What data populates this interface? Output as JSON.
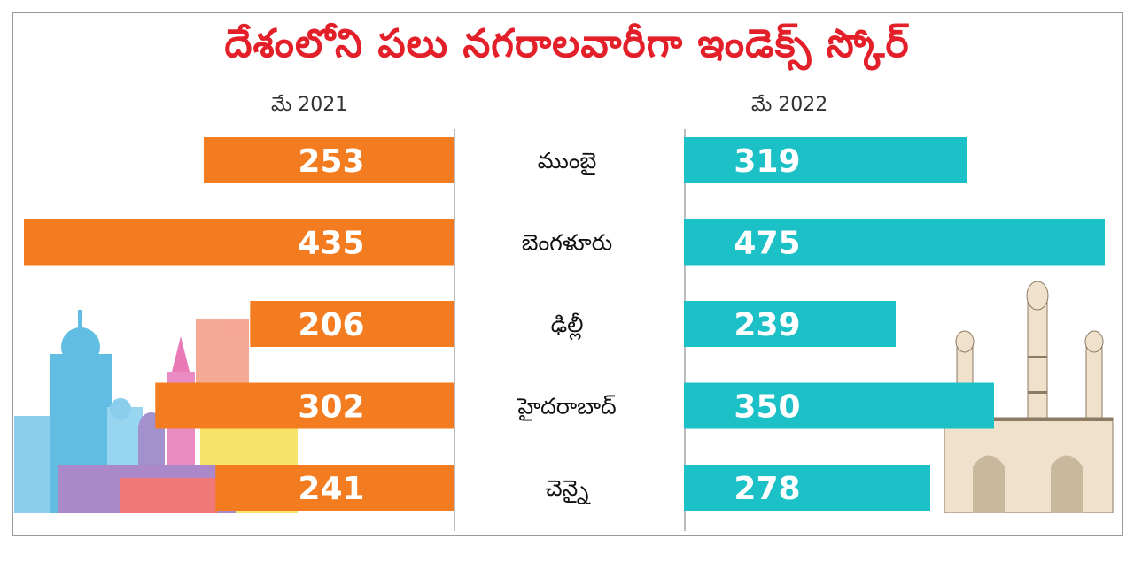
{
  "title": "దేశంలోని పలు నగరాలవారీగా ఇండెక్స్ స్కోర్",
  "years": {
    "left": "మే 2021",
    "right": "మే 2022"
  },
  "colors": {
    "left_bar": "#f47c20",
    "right_bar": "#1cc1c8",
    "title": "#e3202a"
  },
  "chart_data": {
    "type": "bar",
    "title": "దేశంలోని పలు నగరాలవారీగా ఇండెక్స్ స్కోర్",
    "categories": [
      "ముంబై",
      "బెంగళూరు",
      "ఢిల్లీ",
      "హైదరాబాద్",
      "చెన్నై"
    ],
    "series": [
      {
        "name": "మే 2021",
        "values": [
          253,
          435,
          206,
          302,
          241
        ]
      },
      {
        "name": "మే 2022",
        "values": [
          319,
          475,
          239,
          350,
          278
        ]
      }
    ],
    "orientation": "horizontal-butterfly",
    "grid": false
  }
}
